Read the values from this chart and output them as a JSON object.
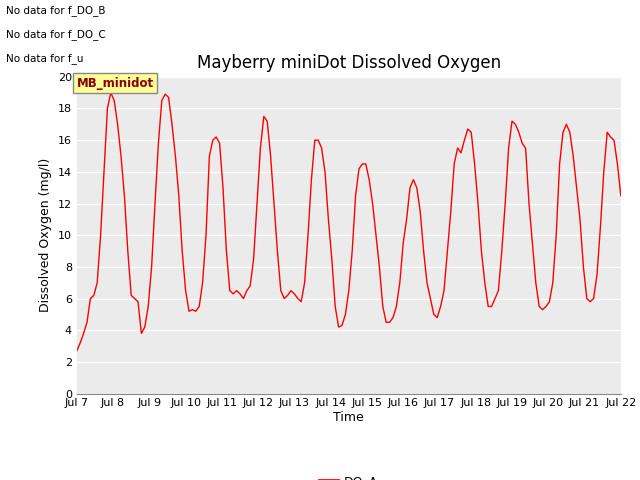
{
  "title": "Mayberry miniDot Dissolved Oxygen",
  "xlabel": "Time",
  "ylabel": "Dissolved Oxygen (mg/l)",
  "legend_label": "DO_A",
  "line_color": "red",
  "ylim": [
    0,
    20
  ],
  "yticks": [
    0,
    2,
    4,
    6,
    8,
    10,
    12,
    14,
    16,
    18,
    20
  ],
  "xtick_labels": [
    "Jul 7",
    "Jul 8",
    "Jul 9",
    "Jul 10",
    "Jul 11",
    "Jul 12",
    "Jul 13",
    "Jul 14",
    "Jul 15",
    "Jul 16",
    "Jul 17",
    "Jul 18",
    "Jul 19",
    "Jul 20",
    "Jul 21",
    "Jul 22"
  ],
  "no_data_texts": [
    "No data for f_DO_B",
    "No data for f_DO_C",
    "No data for f_u"
  ],
  "annotation_box_text": "MB_minidot",
  "annotation_box_color": "#FFFF99",
  "annotation_box_edgecolor": "#888888",
  "bg_color": "#EBEBEB",
  "title_fontsize": 12,
  "axis_label_fontsize": 9,
  "tick_fontsize": 8,
  "no_data_fontsize": 7.5,
  "annotation_fontsize": 8.5,
  "do_data": [
    2.7,
    3.2,
    3.8,
    4.5,
    6.0,
    6.2,
    7.0,
    10.0,
    14.0,
    18.0,
    19.0,
    18.5,
    17.0,
    15.0,
    12.5,
    9.0,
    6.2,
    6.0,
    5.8,
    3.8,
    4.2,
    5.5,
    8.0,
    12.0,
    15.8,
    18.5,
    18.9,
    18.7,
    17.0,
    15.0,
    12.5,
    9.0,
    6.5,
    5.2,
    5.3,
    5.2,
    5.5,
    7.0,
    10.0,
    15.0,
    16.0,
    16.2,
    15.8,
    13.0,
    9.0,
    6.5,
    6.3,
    6.5,
    6.3,
    6.0,
    6.5,
    6.8,
    8.5,
    12.0,
    15.5,
    17.5,
    17.2,
    15.0,
    12.0,
    9.0,
    6.5,
    6.0,
    6.2,
    6.5,
    6.3,
    6.0,
    5.8,
    7.0,
    10.0,
    13.5,
    16.0,
    16.0,
    15.5,
    14.0,
    11.0,
    8.5,
    5.5,
    4.2,
    4.3,
    5.0,
    6.5,
    9.0,
    12.5,
    14.2,
    14.5,
    14.5,
    13.5,
    12.0,
    10.0,
    8.0,
    5.5,
    4.5,
    4.5,
    4.8,
    5.5,
    7.0,
    9.5,
    11.0,
    13.0,
    13.5,
    13.0,
    11.5,
    9.0,
    7.0,
    6.0,
    5.0,
    4.8,
    5.5,
    6.5,
    9.0,
    11.5,
    14.5,
    15.5,
    15.2,
    16.0,
    16.7,
    16.5,
    14.5,
    12.0,
    9.0,
    7.0,
    5.5,
    5.5,
    6.0,
    6.5,
    9.0,
    12.0,
    15.5,
    17.2,
    17.0,
    16.5,
    15.8,
    15.5,
    12.0,
    9.5,
    7.0,
    5.5,
    5.3,
    5.5,
    5.8,
    7.0,
    10.0,
    14.5,
    16.5,
    17.0,
    16.5,
    15.0,
    13.0,
    11.0,
    8.0,
    6.0,
    5.8,
    6.0,
    7.5,
    10.5,
    14.0,
    16.5,
    16.2,
    16.0,
    14.5,
    12.5
  ]
}
